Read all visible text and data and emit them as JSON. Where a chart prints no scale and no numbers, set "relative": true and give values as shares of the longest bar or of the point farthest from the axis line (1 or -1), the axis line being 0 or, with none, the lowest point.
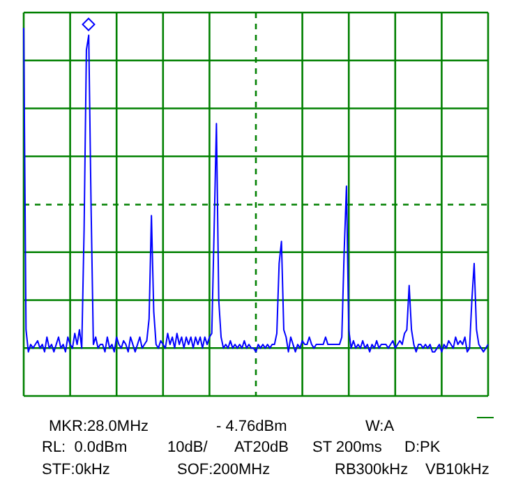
{
  "chart_data": {
    "type": "line",
    "relative": true,
    "grid": true,
    "tick_labels": false,
    "categories": [
      null,
      null,
      null,
      null,
      null,
      null,
      null,
      null,
      null,
      null,
      null,
      null,
      null,
      null,
      null,
      null,
      null,
      null,
      null,
      null,
      null,
      null,
      null,
      null,
      null,
      null,
      null,
      null,
      null,
      null,
      null,
      null,
      null,
      null,
      null,
      null,
      null,
      null,
      null,
      null,
      null,
      null,
      null,
      null,
      null,
      null,
      null,
      null,
      null,
      null,
      null,
      null,
      null,
      null,
      null,
      null,
      null,
      null,
      null,
      null,
      null,
      null,
      null,
      null,
      null,
      null,
      null,
      null,
      null,
      null,
      null,
      null,
      null,
      null,
      null,
      null,
      null,
      null,
      null,
      null,
      null,
      null,
      null,
      null,
      null,
      null,
      null,
      null,
      null,
      null,
      null,
      null,
      null,
      null,
      null,
      null,
      null,
      null,
      null,
      null,
      null,
      null,
      null,
      null,
      null,
      null,
      null,
      null,
      null,
      null,
      null,
      null,
      null,
      null,
      null,
      null,
      null,
      null,
      null,
      null,
      null,
      null,
      null,
      null,
      null,
      null,
      null,
      null,
      null,
      null,
      null,
      null,
      null,
      null,
      null,
      null,
      null,
      null,
      null,
      null,
      null,
      null,
      null,
      null,
      null,
      null,
      null,
      null,
      null,
      null,
      null,
      null,
      null,
      null,
      null,
      null,
      null,
      null,
      null,
      null,
      null,
      null,
      null,
      null,
      null,
      null,
      null,
      null,
      null,
      null,
      null,
      null,
      null,
      null,
      null,
      null,
      null,
      null,
      null,
      null,
      null,
      null,
      null,
      null,
      null,
      null,
      null,
      null,
      null,
      null,
      null,
      null,
      null,
      null,
      null,
      null,
      null,
      null,
      null,
      null,
      null
    ],
    "series": [
      {
        "type": "line",
        "color": "#0000ff",
        "values": [
          1.0,
          0.18,
          0.12,
          0.14,
          0.13,
          0.14,
          0.15,
          0.13,
          0.14,
          0.12,
          0.16,
          0.13,
          0.14,
          0.12,
          0.14,
          0.16,
          0.13,
          0.14,
          0.12,
          0.16,
          0.14,
          0.13,
          0.17,
          0.14,
          0.18,
          0.13,
          0.45,
          0.94,
          0.98,
          0.52,
          0.14,
          0.16,
          0.13,
          0.14,
          0.14,
          0.12,
          0.16,
          0.13,
          0.14,
          0.12,
          0.16,
          0.14,
          0.13,
          0.15,
          0.14,
          0.12,
          0.16,
          0.14,
          0.12,
          0.14,
          0.16,
          0.13,
          0.14,
          0.15,
          0.21,
          0.49,
          0.23,
          0.14,
          0.13,
          0.15,
          0.14,
          0.13,
          0.17,
          0.14,
          0.16,
          0.13,
          0.17,
          0.14,
          0.16,
          0.13,
          0.16,
          0.14,
          0.16,
          0.13,
          0.16,
          0.14,
          0.16,
          0.13,
          0.16,
          0.14,
          0.16,
          0.17,
          0.45,
          0.74,
          0.26,
          0.16,
          0.13,
          0.14,
          0.13,
          0.15,
          0.13,
          0.14,
          0.13,
          0.14,
          0.13,
          0.15,
          0.13,
          0.14,
          0.13,
          0.13,
          0.12,
          0.14,
          0.13,
          0.14,
          0.13,
          0.14,
          0.13,
          0.14,
          0.14,
          0.17,
          0.36,
          0.42,
          0.18,
          0.16,
          0.12,
          0.16,
          0.14,
          0.12,
          0.14,
          0.13,
          0.15,
          0.14,
          0.14,
          0.16,
          0.14,
          0.13,
          0.14,
          0.14,
          0.14,
          0.14,
          0.16,
          0.14,
          0.14,
          0.14,
          0.14,
          0.14,
          0.14,
          0.16,
          0.39,
          0.57,
          0.18,
          0.13,
          0.15,
          0.13,
          0.14,
          0.13,
          0.15,
          0.13,
          0.14,
          0.12,
          0.14,
          0.13,
          0.15,
          0.13,
          0.14,
          0.14,
          0.14,
          0.13,
          0.14,
          0.15,
          0.13,
          0.14,
          0.15,
          0.14,
          0.17,
          0.18,
          0.3,
          0.18,
          0.14,
          0.12,
          0.14,
          0.14,
          0.13,
          0.14,
          0.13,
          0.14,
          0.12,
          0.12,
          0.13,
          0.14,
          0.12,
          0.14,
          0.13,
          0.15,
          0.14,
          0.13,
          0.16,
          0.14,
          0.15,
          0.14,
          0.16,
          0.12,
          0.13,
          0.26,
          0.36,
          0.18,
          0.14,
          0.13,
          0.12,
          0.13,
          0.14
        ]
      }
    ],
    "ref_lines": [
      {
        "axis": "y",
        "value": 0.52,
        "color": "#008000",
        "line_style": "dashed"
      }
    ],
    "annotations": [
      "MKR:28.0MHz",
      "- 4.76dBm",
      "W:A",
      "RL:  0.0dBm",
      "10dB/",
      "AT20dB",
      "ST 200ms",
      "D:PK",
      "STF:0kHz",
      "SOF:200MHz",
      "RB300kHz",
      "VB10kHz"
    ]
  }
}
